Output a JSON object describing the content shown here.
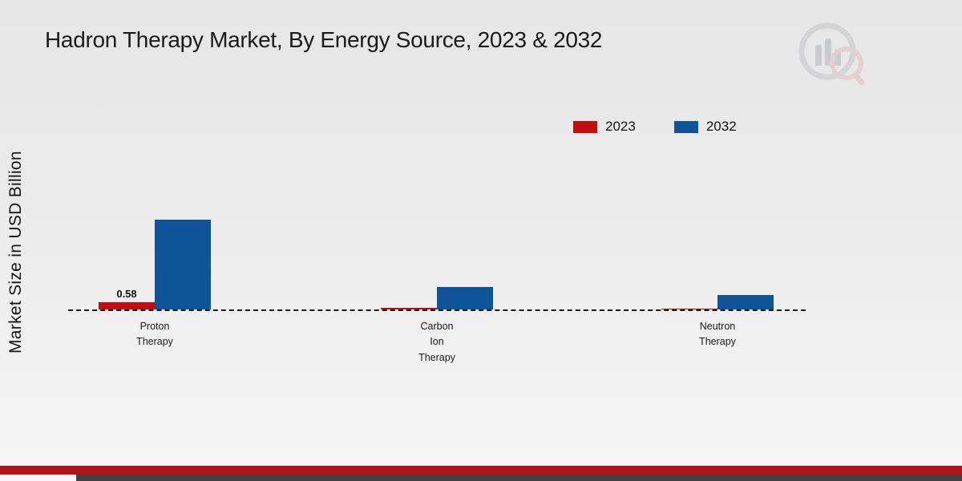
{
  "title": "Hadron Therapy Market, By Energy Source, 2023 & 2032",
  "ylabel": "Market Size in USD Billion",
  "chart_data": {
    "type": "bar",
    "title": "Hadron Therapy Market, By Energy Source, 2023 & 2032",
    "ylabel": "Market Size in USD Billion",
    "categories": [
      "Proton Therapy",
      "Carbon Ion Therapy",
      "Neutron Therapy"
    ],
    "category_labels": [
      "Proton\nTherapy",
      "Carbon\nIon\nTherapy",
      "Neutron\nTherapy"
    ],
    "series": [
      {
        "name": "2023",
        "color": "#c00d10",
        "values": [
          0.58,
          0.12,
          0.05
        ]
      },
      {
        "name": "2032",
        "color": "#0f5499",
        "values": [
          7.2,
          1.8,
          1.15
        ]
      }
    ],
    "value_labels": [
      {
        "category_index": 0,
        "series_index": 0,
        "text": "0.58"
      }
    ],
    "ylim": [
      0,
      8
    ],
    "grid": false,
    "baseline_style": "dashed",
    "legend_position": "top-right"
  },
  "branding": {
    "logo_name": "market-research-logo"
  }
}
